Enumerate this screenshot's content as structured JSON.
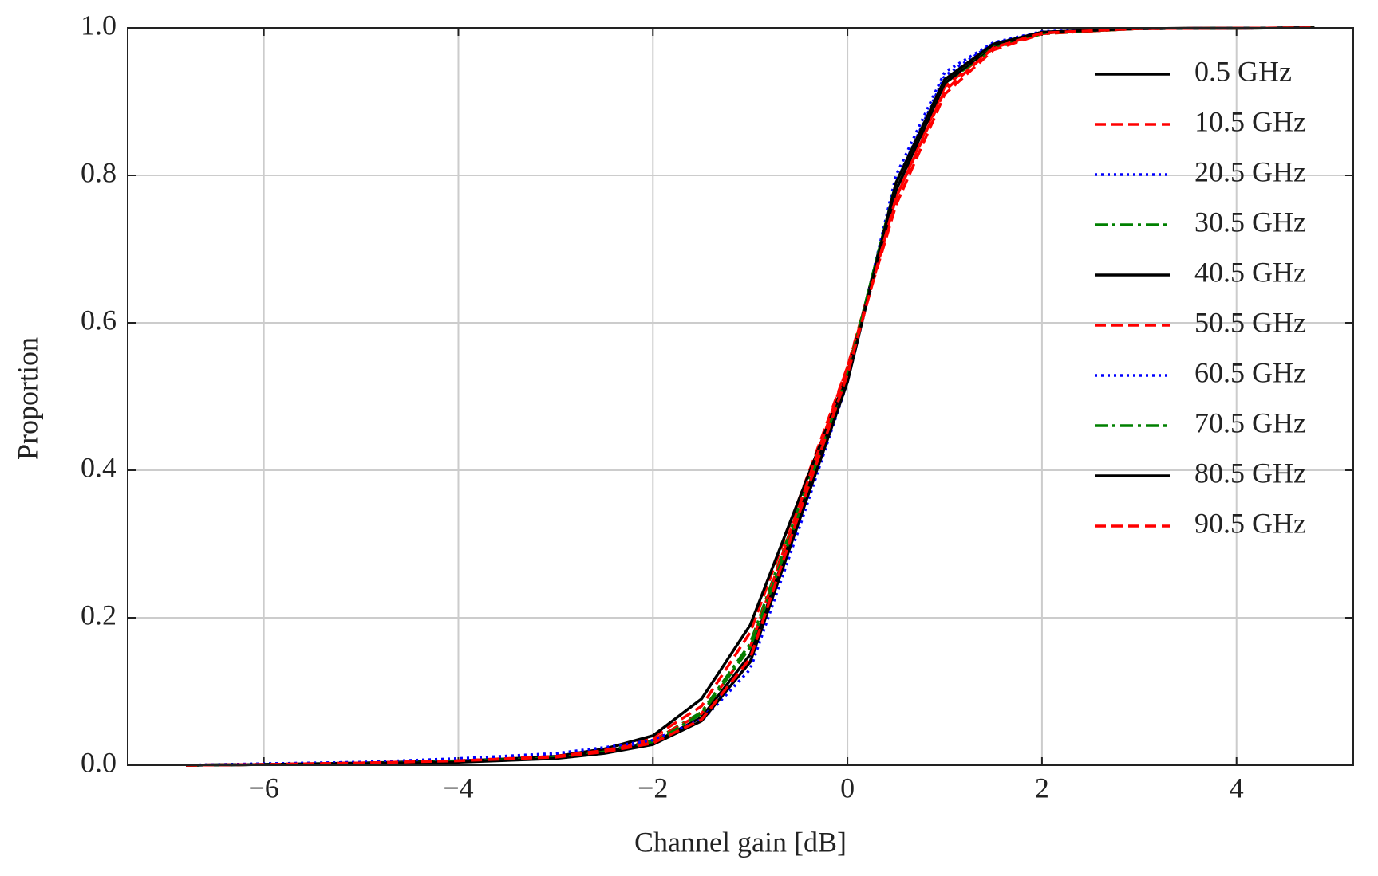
{
  "chart_data": {
    "type": "line",
    "x_label": "Channel gain [dB]",
    "y_label": "Proportion",
    "x": [
      -6.8,
      -6,
      -5,
      -4,
      -3,
      -2.5,
      -2,
      -1.5,
      -1,
      -0.5,
      0,
      0.5,
      1,
      1.5,
      2,
      3,
      4.8
    ],
    "series": [
      {
        "name": "0.5 GHz",
        "color": "#000000",
        "dash": "solid",
        "values": [
          0,
          0.001,
          0.003,
          0.006,
          0.011,
          0.019,
          0.03,
          0.065,
          0.15,
          0.34,
          0.53,
          0.79,
          0.93,
          0.978,
          0.994,
          0.999,
          1
        ]
      },
      {
        "name": "10.5 GHz",
        "color": "#ff0000",
        "dash": "dashed",
        "values": [
          0,
          0.001,
          0.003,
          0.006,
          0.012,
          0.022,
          0.038,
          0.08,
          0.18,
          0.36,
          0.54,
          0.77,
          0.92,
          0.974,
          0.993,
          0.999,
          1
        ]
      },
      {
        "name": "20.5 GHz",
        "color": "#0000ff",
        "dash": "dotted",
        "values": [
          0,
          0.002,
          0.004,
          0.008,
          0.015,
          0.022,
          0.032,
          0.06,
          0.13,
          0.32,
          0.52,
          0.8,
          0.94,
          0.98,
          0.995,
          0.999,
          1
        ]
      },
      {
        "name": "30.5 GHz",
        "color": "#008000",
        "dash": "dashdot",
        "values": [
          0,
          0.001,
          0.002,
          0.005,
          0.011,
          0.019,
          0.033,
          0.072,
          0.165,
          0.35,
          0.53,
          0.79,
          0.925,
          0.972,
          0.992,
          0.999,
          1
        ]
      },
      {
        "name": "40.5 GHz",
        "color": "#000000",
        "dash": "solid",
        "values": [
          0,
          0.001,
          0.002,
          0.005,
          0.012,
          0.022,
          0.04,
          0.09,
          0.19,
          0.36,
          0.53,
          0.78,
          0.925,
          0.976,
          0.993,
          0.999,
          1
        ]
      },
      {
        "name": "50.5 GHz",
        "color": "#ff0000",
        "dash": "dashed",
        "values": [
          0,
          0.001,
          0.003,
          0.006,
          0.012,
          0.02,
          0.034,
          0.07,
          0.16,
          0.35,
          0.54,
          0.76,
          0.91,
          0.97,
          0.992,
          0.999,
          1
        ]
      },
      {
        "name": "60.5 GHz",
        "color": "#0000ff",
        "dash": "dotted",
        "values": [
          0,
          0.002,
          0.004,
          0.009,
          0.016,
          0.024,
          0.034,
          0.062,
          0.14,
          0.33,
          0.52,
          0.79,
          0.935,
          0.979,
          0.994,
          0.999,
          1
        ]
      },
      {
        "name": "70.5 GHz",
        "color": "#008000",
        "dash": "dashdot",
        "values": [
          0,
          0.001,
          0.002,
          0.005,
          0.01,
          0.017,
          0.03,
          0.07,
          0.16,
          0.34,
          0.53,
          0.79,
          0.93,
          0.977,
          0.993,
          0.999,
          1
        ]
      },
      {
        "name": "80.5 GHz",
        "color": "#000000",
        "dash": "solid",
        "values": [
          0,
          0.001,
          0.002,
          0.004,
          0.009,
          0.016,
          0.028,
          0.06,
          0.14,
          0.33,
          0.52,
          0.79,
          0.93,
          0.978,
          0.994,
          0.999,
          1
        ]
      },
      {
        "name": "90.5 GHz",
        "color": "#ff0000",
        "dash": "dashed",
        "values": [
          0,
          0.001,
          0.003,
          0.006,
          0.011,
          0.018,
          0.03,
          0.062,
          0.145,
          0.34,
          0.53,
          0.77,
          0.915,
          0.973,
          0.993,
          0.999,
          1
        ]
      }
    ],
    "xlim": [
      -7.4,
      5.2
    ],
    "xticks": [
      {
        "value": -6,
        "label": "−6"
      },
      {
        "value": -4,
        "label": "−4"
      },
      {
        "value": -2,
        "label": "−2"
      },
      0,
      2,
      4
    ],
    "ylim": [
      0,
      1
    ],
    "yticks": [
      {
        "value": 0,
        "label": "0.0"
      },
      0.2,
      0.4,
      0.6,
      0.8,
      {
        "value": 1,
        "label": "1.0"
      }
    ],
    "grid": true,
    "legend": "upper right"
  }
}
